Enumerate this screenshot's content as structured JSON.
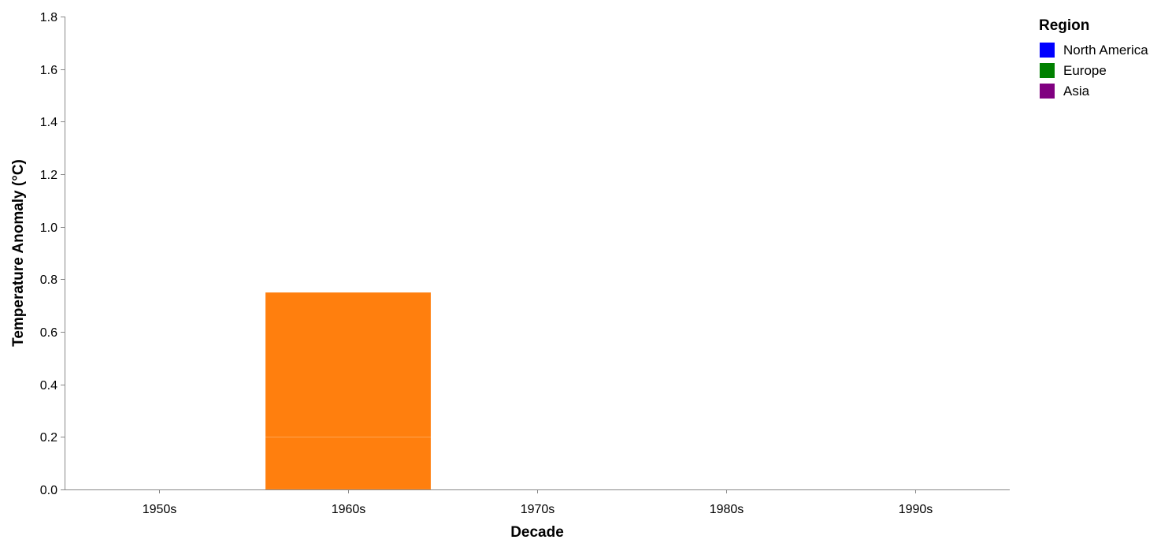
{
  "chart_data": {
    "type": "bar",
    "stacked": true,
    "xlabel": "Decade",
    "ylabel": "Temperature Anomaly (°C)",
    "ylim": [
      0,
      1.8
    ],
    "yticks": [
      0.0,
      0.2,
      0.4,
      0.6,
      0.8,
      1.0,
      1.2,
      1.4,
      1.6,
      1.8
    ],
    "ytick_labels": [
      "0.0",
      "0.2",
      "0.4",
      "0.6",
      "0.8",
      "1.0",
      "1.2",
      "1.4",
      "1.6",
      "1.8"
    ],
    "categories": [
      "1950s",
      "1960s",
      "1970s",
      "1980s",
      "1990s"
    ],
    "bars": [
      {
        "category": "1960s",
        "segments": [
          {
            "value": 0.2,
            "color": "#ff7f0e"
          },
          {
            "value": 0.55,
            "color": "#ff7f0e"
          }
        ]
      }
    ],
    "grid": false,
    "legend": {
      "title": "Region",
      "placement": "top-right",
      "entries": [
        {
          "label": "North America",
          "color": "#0000ff"
        },
        {
          "label": "Europe",
          "color": "#008000"
        },
        {
          "label": "Asia",
          "color": "#800080"
        }
      ]
    },
    "axis_color": "#888888"
  }
}
